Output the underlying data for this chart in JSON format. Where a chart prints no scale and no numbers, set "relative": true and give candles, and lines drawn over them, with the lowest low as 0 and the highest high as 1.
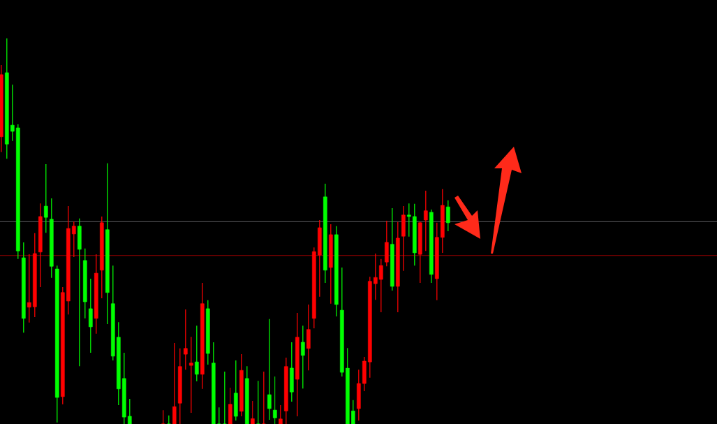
{
  "chart_data": {
    "type": "candlestick",
    "relative": true,
    "categories": [
      null,
      null,
      null,
      null,
      null,
      null,
      null,
      null,
      null,
      null,
      null,
      null,
      null,
      null,
      null,
      null,
      null,
      null,
      null,
      null,
      null,
      null,
      null,
      null,
      null,
      null,
      null,
      null,
      null,
      null,
      null,
      null,
      null,
      null,
      null,
      null,
      null,
      null,
      null,
      null,
      null,
      null,
      null,
      null,
      null,
      null,
      null,
      null,
      null,
      null,
      null,
      null,
      null,
      null,
      null,
      null,
      null,
      null,
      null,
      null,
      null,
      null,
      null,
      null,
      null,
      null,
      null,
      null,
      null,
      null,
      null,
      null,
      null,
      null,
      null,
      null,
      null,
      null,
      null,
      null,
      null
    ],
    "ohlc": [
      [
        0.745,
        0.931,
        0.705,
        0.906
      ],
      [
        0.911,
        1.0,
        0.688,
        0.726
      ],
      [
        0.775,
        0.88,
        0.734,
        0.759
      ],
      [
        0.768,
        0.777,
        0.428,
        0.449
      ],
      [
        0.431,
        0.471,
        0.237,
        0.274
      ],
      [
        0.303,
        0.44,
        0.263,
        0.315
      ],
      [
        0.304,
        0.495,
        0.277,
        0.442
      ],
      [
        0.446,
        0.572,
        0.355,
        0.538
      ],
      [
        0.565,
        0.674,
        0.496,
        0.536
      ],
      [
        0.531,
        0.585,
        0.379,
        0.409
      ],
      [
        0.402,
        0.411,
        0.004,
        0.069
      ],
      [
        0.071,
        0.355,
        0.051,
        0.341
      ],
      [
        0.319,
        0.565,
        0.284,
        0.507
      ],
      [
        0.493,
        0.525,
        0.433,
        0.513
      ],
      [
        0.513,
        0.533,
        0.15,
        0.453
      ],
      [
        0.424,
        0.455,
        0.274,
        0.317
      ],
      [
        0.299,
        0.377,
        0.185,
        0.252
      ],
      [
        0.274,
        0.44,
        0.234,
        0.391
      ],
      [
        0.399,
        0.538,
        0.326,
        0.522
      ],
      [
        0.504,
        0.676,
        0.259,
        0.341
      ],
      [
        0.312,
        0.411,
        0.165,
        0.176
      ],
      [
        0.225,
        0.264,
        0.049,
        0.091
      ],
      [
        0.118,
        0.185,
        0,
        0.018
      ],
      [
        0.02,
        0.065,
        0,
        0
      ],
      null,
      null,
      null,
      null,
      null,
      [
        0,
        0.036,
        0,
        0
      ],
      [
        0,
        0.022,
        0,
        0
      ],
      [
        0,
        0.21,
        0,
        0.045
      ],
      [
        0.054,
        0.196,
        0,
        0.149
      ],
      [
        0.181,
        0.297,
        0.141,
        0.196
      ],
      [
        0.152,
        0.226,
        0.029,
        0.158
      ],
      [
        0.161,
        0.255,
        0.111,
        0.129
      ],
      [
        0.129,
        0.366,
        0.091,
        0.312
      ],
      [
        0.299,
        0.321,
        0.154,
        0.183
      ],
      [
        0.158,
        0.212,
        0,
        0
      ],
      [
        0,
        0.043,
        0,
        0
      ],
      [
        0,
        0.136,
        0,
        0
      ],
      [
        0,
        0.094,
        0,
        0.051
      ],
      [
        0.08,
        0.165,
        0.009,
        0.02
      ],
      [
        0.033,
        0.181,
        0.02,
        0.139
      ],
      [
        0.118,
        0.15,
        0,
        0
      ],
      [
        0,
        0.06,
        0,
        0.014
      ],
      [
        0,
        0.112,
        0,
        0
      ],
      [
        0,
        0.136,
        0,
        0
      ],
      [
        0.076,
        0.272,
        0.011,
        0.04
      ],
      [
        0.036,
        0.123,
        0,
        0.016
      ],
      [
        0,
        0.049,
        0,
        0.013
      ],
      [
        0.034,
        0.172,
        0,
        0.149
      ],
      [
        0.145,
        0.212,
        0.058,
        0.083
      ],
      [
        0.116,
        0.288,
        0.02,
        0.225
      ],
      [
        0.212,
        0.255,
        0.092,
        0.178
      ],
      [
        0.196,
        0.31,
        0.139,
        0.245
      ],
      [
        0.274,
        0.458,
        0.248,
        0.447
      ],
      [
        0.438,
        0.529,
        0.33,
        0.509
      ],
      [
        0.589,
        0.623,
        0.366,
        0.399
      ],
      [
        0.406,
        0.518,
        0.312,
        0.491
      ],
      [
        0.491,
        0.513,
        0.279,
        0.31
      ],
      [
        0.295,
        0.406,
        0.123,
        0.134
      ],
      [
        0.145,
        0.197,
        0,
        0
      ],
      [
        0.034,
        0.062,
        0,
        0
      ],
      [
        0.04,
        0.141,
        0.009,
        0.105
      ],
      [
        0.105,
        0.174,
        0.085,
        0.163
      ],
      [
        0.161,
        0.382,
        0.12,
        0.37
      ],
      [
        0.364,
        0.442,
        0.322,
        0.38
      ],
      [
        0.375,
        0.428,
        0.29,
        0.411
      ],
      [
        0.42,
        0.527,
        0.409,
        0.471
      ],
      [
        0.466,
        0.56,
        0.346,
        0.357
      ],
      [
        0.357,
        0.524,
        0.29,
        0.482
      ],
      [
        0.487,
        0.565,
        0.397,
        0.542
      ],
      [
        0.542,
        0.572,
        0.486,
        0.538
      ],
      [
        0.538,
        0.571,
        0.411,
        0.444
      ],
      [
        0.44,
        0.525,
        0.366,
        0.522
      ],
      [
        0.529,
        0.605,
        0.449,
        0.553
      ],
      [
        0.549,
        0.556,
        0.366,
        0.388
      ],
      [
        0.377,
        0.522,
        0.321,
        0.484
      ],
      [
        0.484,
        0.609,
        0.444,
        0.567
      ],
      [
        0.563,
        0.58,
        0.5,
        0.522
      ]
    ],
    "colors": [
      "#ff0000",
      "#00ff00",
      "#00ff00",
      "#00ff00",
      "#00ff00",
      "#ff0000",
      "#ff0000",
      "#ff0000",
      "#00ff00",
      "#00ff00",
      "#00ff00",
      "#ff0000",
      "#ff0000",
      "#ff0000",
      "#00ff00",
      "#00ff00",
      "#00ff00",
      "#ff0000",
      "#ff0000",
      "#00ff00",
      "#00ff00",
      "#00ff00",
      "#00ff00",
      "#00ff00",
      null,
      null,
      null,
      null,
      null,
      "#ff0000",
      "#00ff00",
      "#ff0000",
      "#ff0000",
      "#ff0000",
      "#ff0000",
      "#00ff00",
      "#ff0000",
      "#00ff00",
      "#00ff00",
      "#00ff00",
      "#00ff00",
      "#ff0000",
      "#00ff00",
      "#ff0000",
      "#00ff00",
      "#ff0000",
      "#00ff00",
      "#ff0000",
      "#00ff00",
      "#00ff00",
      "#ff0000",
      "#ff0000",
      "#00ff00",
      "#ff0000",
      "#00ff00",
      "#ff0000",
      "#ff0000",
      "#ff0000",
      "#00ff00",
      "#ff0000",
      "#00ff00",
      "#00ff00",
      "#00ff00",
      "#00ff00",
      "#ff0000",
      "#ff0000",
      "#ff0000",
      "#ff0000",
      "#ff0000",
      "#ff0000",
      "#00ff00",
      "#ff0000",
      "#ff0000",
      "#00ff00",
      "#00ff00",
      "#ff0000",
      "#ff0000",
      "#00ff00",
      "#ff0000",
      "#ff0000",
      "#00ff00"
    ],
    "ref_lines": [
      {
        "axis": "y",
        "value": 0.525,
        "color": "#8c8c94"
      },
      {
        "axis": "y",
        "value": 0.437,
        "color": "#ff0000"
      }
    ]
  }
}
